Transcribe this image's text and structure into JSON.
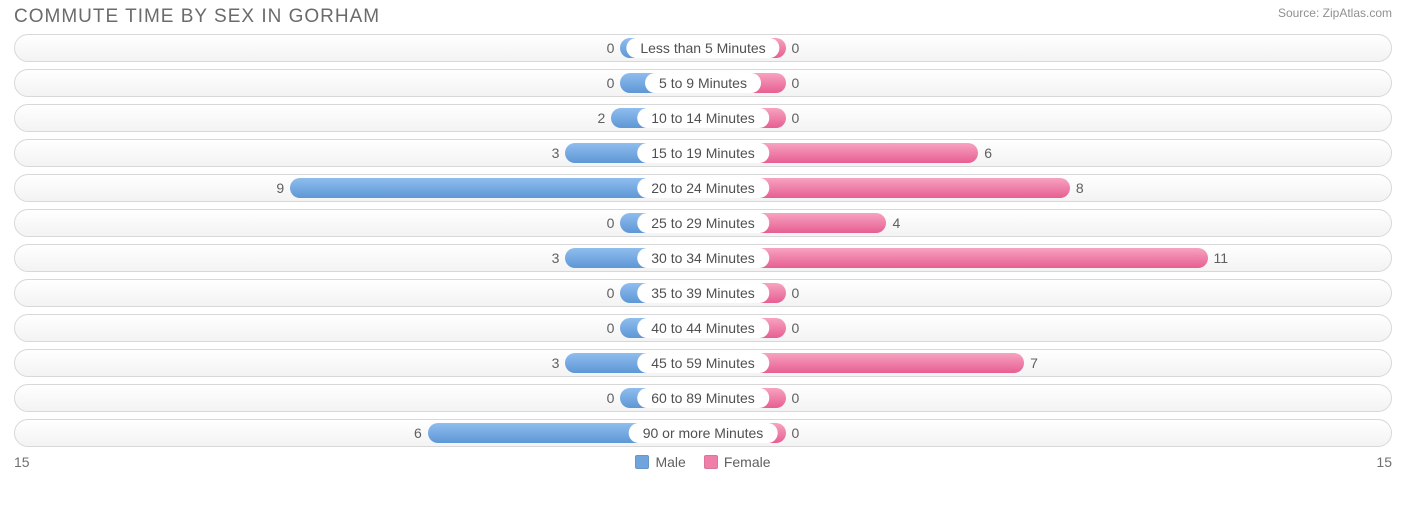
{
  "title": "Commute Time By Sex in Gorham",
  "source_label": "Source: ZipAtlas.com",
  "chart": {
    "type": "diverging-bar",
    "axis_max": 15,
    "left_axis_label": "15",
    "right_axis_label": "15",
    "min_bar_pct": 12,
    "male": {
      "label": "Male",
      "fill_top": "#8fbdee",
      "fill_bottom": "#5e97d6",
      "swatch": "#6fa4dd"
    },
    "female": {
      "label": "Female",
      "fill_top": "#f7a3c0",
      "fill_bottom": "#e75e92",
      "swatch": "#ef7fa9"
    },
    "track": {
      "border_color": "#d8d8d8",
      "bg_top": "#ffffff",
      "bg_bottom": "#f3f3f3"
    },
    "label_bg": "#ffffff",
    "text_color": "#606060",
    "categories": [
      {
        "label": "Less than 5 Minutes",
        "male": 0,
        "female": 0
      },
      {
        "label": "5 to 9 Minutes",
        "male": 0,
        "female": 0
      },
      {
        "label": "10 to 14 Minutes",
        "male": 2,
        "female": 0
      },
      {
        "label": "15 to 19 Minutes",
        "male": 3,
        "female": 6
      },
      {
        "label": "20 to 24 Minutes",
        "male": 9,
        "female": 8
      },
      {
        "label": "25 to 29 Minutes",
        "male": 0,
        "female": 4
      },
      {
        "label": "30 to 34 Minutes",
        "male": 3,
        "female": 11
      },
      {
        "label": "35 to 39 Minutes",
        "male": 0,
        "female": 0
      },
      {
        "label": "40 to 44 Minutes",
        "male": 0,
        "female": 0
      },
      {
        "label": "45 to 59 Minutes",
        "male": 3,
        "female": 7
      },
      {
        "label": "60 to 89 Minutes",
        "male": 0,
        "female": 0
      },
      {
        "label": "90 or more Minutes",
        "male": 6,
        "female": 0
      }
    ]
  }
}
